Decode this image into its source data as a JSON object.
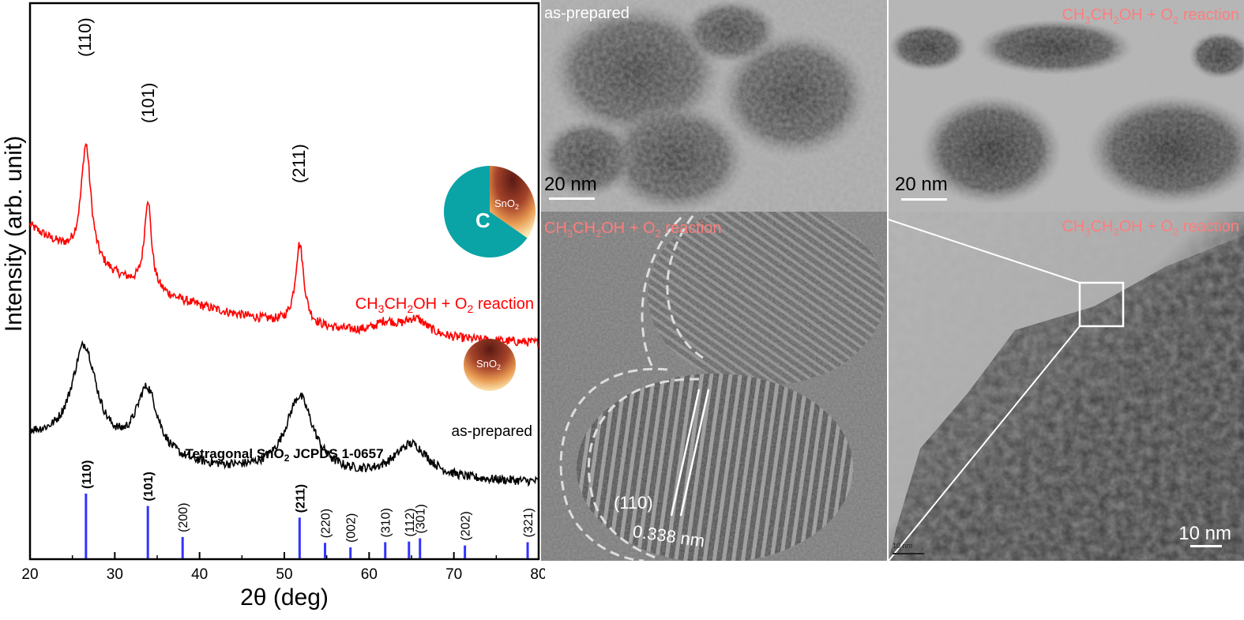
{
  "chart_data": {
    "type": "line",
    "xlabel": "2θ (deg)",
    "ylabel": "Intensity (arb. unit)",
    "xlim": [
      20,
      80
    ],
    "xticks": [
      20,
      30,
      40,
      50,
      60,
      70,
      80
    ],
    "yticks_visible": false,
    "series": [
      {
        "name": "CH3CH2OH + O2 reaction",
        "color": "#ff0000",
        "baseline_start": 0.82,
        "baseline_end": 0.25,
        "peaks": [
          {
            "x": 26.6,
            "height": 0.55,
            "width": 0.7,
            "label": "(110)"
          },
          {
            "x": 33.9,
            "height": 0.42,
            "width": 0.5,
            "label": "(101)"
          },
          {
            "x": 51.8,
            "height": 0.38,
            "width": 0.6,
            "label": "(211)"
          },
          {
            "x": 62.0,
            "height": 0.05,
            "width": 1.5,
            "label": ""
          },
          {
            "x": 65.5,
            "height": 0.08,
            "width": 1.8,
            "label": ""
          }
        ]
      },
      {
        "name": "as-prepared",
        "color": "#000000",
        "baseline_start": 0.62,
        "baseline_end": 0.35,
        "peaks": [
          {
            "x": 26.4,
            "height": 0.6,
            "width": 1.8
          },
          {
            "x": 33.8,
            "height": 0.4,
            "width": 1.6
          },
          {
            "x": 51.8,
            "height": 0.45,
            "width": 2.0
          },
          {
            "x": 65.0,
            "height": 0.2,
            "width": 2.5
          }
        ]
      }
    ],
    "reference": {
      "title": "Tetragonal SnO2 JCPDS 1-0657",
      "color": "#3333ff",
      "lines": [
        {
          "x": 26.6,
          "intensity": 100,
          "label": "(110)",
          "bold": true
        },
        {
          "x": 33.9,
          "intensity": 81,
          "label": "(101)",
          "bold": true
        },
        {
          "x": 38.0,
          "intensity": 33,
          "label": "(200)",
          "bold": false
        },
        {
          "x": 51.8,
          "intensity": 63,
          "label": "(211)",
          "bold": true
        },
        {
          "x": 54.8,
          "intensity": 24,
          "label": "(220)",
          "bold": false
        },
        {
          "x": 57.8,
          "intensity": 17,
          "label": "(002)",
          "bold": false
        },
        {
          "x": 61.9,
          "intensity": 25,
          "label": "(310)",
          "bold": false
        },
        {
          "x": 64.7,
          "intensity": 26,
          "label": "(112)",
          "bold": false
        },
        {
          "x": 66.0,
          "intensity": 31,
          "label": "(301)",
          "bold": false
        },
        {
          "x": 71.3,
          "intensity": 20,
          "label": "(202)",
          "bold": false
        },
        {
          "x": 78.7,
          "intensity": 25,
          "label": "(321)",
          "bold": false
        }
      ]
    },
    "annotations": {
      "red_label_prefix": "CH",
      "red_label": "CH3CH2OH + O2 reaction",
      "black_label": "as-prepared",
      "ref_title_prefix": "Tetragonal SnO",
      "ref_title_suffix": " JCPDS 1-0657",
      "pie_c_label": "C",
      "pie_sno2_label": "SnO2",
      "ball_sno2_label": "SnO2",
      "peak_labels": [
        "(110)",
        "(101)",
        "(211)"
      ]
    }
  },
  "tem": {
    "panel_tl_label": "as-prepared",
    "panel_tr_label": "CH3CH2OH + O2 reaction",
    "panel_bl_label": "CH3CH2OH + O2 reaction",
    "panel_br_label": "CH3CH2OH + O2 reaction",
    "scale_20nm": "20 nm",
    "scale_10nm": "10 nm",
    "scale_tiny": "10 nm",
    "lattice_plane": "(110)",
    "lattice_spacing": "0.338 nm"
  },
  "colors": {
    "red": "#ff0000",
    "black": "#000000",
    "blue": "#3333ff",
    "teal": "#0aa3a6",
    "tem_label": "#ff7d7d"
  }
}
